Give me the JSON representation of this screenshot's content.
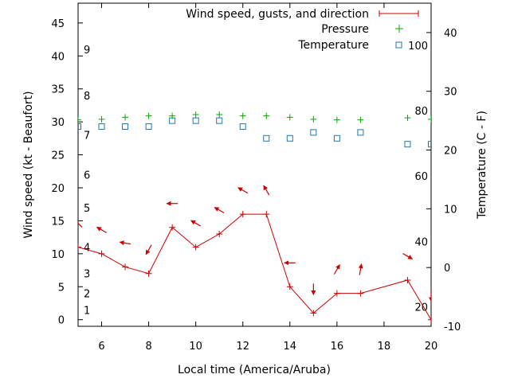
{
  "chart_data": {
    "type": "line",
    "xlabel": "Local time (America/Aruba)",
    "ylabel": "Wind speed (kt - Beaufort)",
    "y2label": "Temperature (C - F)",
    "xlim": [
      5,
      20
    ],
    "ylim": [
      -1,
      48
    ],
    "y2lim": [
      -10,
      45
    ],
    "grid": false,
    "legend_position": "top-right",
    "x_ticks": [
      6,
      8,
      10,
      12,
      14,
      16,
      18,
      20
    ],
    "y_ticks": [
      0,
      5,
      10,
      15,
      20,
      25,
      30,
      35,
      40,
      45
    ],
    "y2_ticks": [
      -10,
      0,
      10,
      20,
      30,
      40
    ],
    "beaufort_labels": [
      {
        "label": "1",
        "value": 1.5
      },
      {
        "label": "2",
        "value": 4
      },
      {
        "label": "3",
        "value": 7
      },
      {
        "label": "4",
        "value": 11
      },
      {
        "label": "5",
        "value": 17
      },
      {
        "label": "6",
        "value": 22
      },
      {
        "label": "7",
        "value": 28
      },
      {
        "label": "8",
        "value": 34
      },
      {
        "label": "9",
        "value": 41
      }
    ],
    "fahrenheit_labels": [
      {
        "label": "20",
        "value": -6.7
      },
      {
        "label": "40",
        "value": 4.4
      },
      {
        "label": "60",
        "value": 15.6
      },
      {
        "label": "80",
        "value": 26.7
      },
      {
        "label": "100",
        "value": 37.8
      }
    ],
    "series": [
      {
        "name": "Wind speed, gusts, and direction",
        "color": "#cc0000",
        "x": [
          5,
          6,
          7,
          8,
          9,
          10,
          11,
          12,
          13,
          14,
          15,
          16,
          17,
          19,
          20
        ],
        "values": [
          11,
          10,
          8,
          7,
          14,
          11,
          13,
          16,
          16,
          5,
          1,
          4,
          4,
          6,
          0
        ]
      },
      {
        "name": "Pressure",
        "color": "#00aa00",
        "x": [
          5,
          6,
          7,
          8,
          9,
          10,
          11,
          12,
          13,
          14,
          15,
          16,
          17,
          19,
          20
        ],
        "values": [
          30.3,
          30.4,
          30.7,
          30.9,
          30.9,
          31.1,
          31.1,
          30.9,
          30.9,
          30.7,
          30.4,
          30.3,
          30.3,
          30.6,
          30.4
        ]
      },
      {
        "name": "Temperature",
        "color": "#1f77b4",
        "x": [
          5,
          6,
          7,
          8,
          9,
          10,
          11,
          12,
          13,
          14,
          15,
          16,
          17,
          19,
          20
        ],
        "values": [
          24,
          24,
          24,
          24,
          25,
          25,
          25,
          24,
          22,
          22,
          23,
          22,
          23,
          21,
          21
        ]
      }
    ],
    "wind_direction_deg": [
      135,
      120,
      100,
      30,
      90,
      120,
      120,
      120,
      150,
      90,
      0,
      210,
      190,
      300,
      0
    ]
  }
}
